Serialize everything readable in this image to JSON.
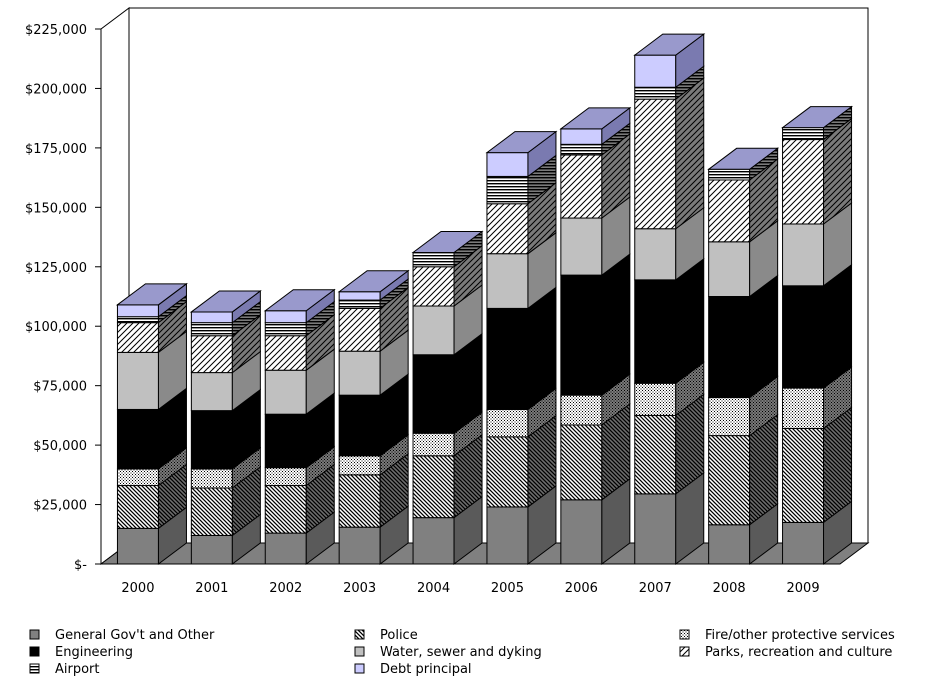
{
  "chart_data": {
    "type": "bar",
    "stacked": true,
    "three_d": true,
    "categories": [
      "2000",
      "2001",
      "2002",
      "2003",
      "2004",
      "2005",
      "2006",
      "2007",
      "2008",
      "2009"
    ],
    "ylim": [
      0,
      225000
    ],
    "y_ticks": [
      0,
      25000,
      50000,
      75000,
      100000,
      125000,
      150000,
      175000,
      200000,
      225000
    ],
    "y_tick_labels": [
      "$-",
      "$25,000",
      "$50,000",
      "$75,000",
      "$100,000",
      "$125,000",
      "$150,000",
      "$175,000",
      "$200,000",
      "$225,000"
    ],
    "legend_position": "bottom",
    "series": [
      {
        "name": "General Gov't and Other",
        "pattern": "solid-gray",
        "color": "#808080",
        "values": [
          15000,
          12000,
          13000,
          15500,
          19500,
          24000,
          27000,
          29500,
          16500,
          17500
        ]
      },
      {
        "name": "Police",
        "pattern": "diagonal-dense",
        "color": "#ffffff",
        "values": [
          18000,
          20000,
          20000,
          22000,
          26000,
          29500,
          31500,
          33000,
          37500,
          39500
        ]
      },
      {
        "name": "Fire/other protective services",
        "pattern": "dots",
        "color": "#ffffff",
        "values": [
          7000,
          8000,
          7500,
          8000,
          9500,
          11500,
          12500,
          13500,
          16000,
          17000
        ]
      },
      {
        "name": "Engineering",
        "pattern": "solid-black",
        "color": "#000000",
        "values": [
          25000,
          24500,
          22500,
          25500,
          33000,
          42500,
          50500,
          43500,
          42500,
          43000
        ]
      },
      {
        "name": "Water, sewer and dyking",
        "pattern": "solid-silver",
        "color": "#c0c0c0",
        "values": [
          24000,
          16000,
          18500,
          18500,
          20500,
          23000,
          24000,
          21500,
          23000,
          26000
        ]
      },
      {
        "name": "Parks, recreation and culture",
        "pattern": "diagonal-light",
        "color": "#ffffff",
        "values": [
          12500,
          15500,
          14500,
          18000,
          16500,
          21000,
          26500,
          54500,
          26000,
          35500
        ]
      },
      {
        "name": "Airport",
        "pattern": "horizontal",
        "color": "#ffffff",
        "values": [
          2500,
          5500,
          5500,
          3500,
          6000,
          11500,
          4500,
          5000,
          4500,
          5000
        ]
      },
      {
        "name": "Debt principal",
        "pattern": "solid-lavender",
        "color": "#ccccff",
        "values": [
          5000,
          4500,
          5000,
          3500,
          0,
          10000,
          6500,
          13500,
          0,
          0
        ]
      }
    ]
  }
}
